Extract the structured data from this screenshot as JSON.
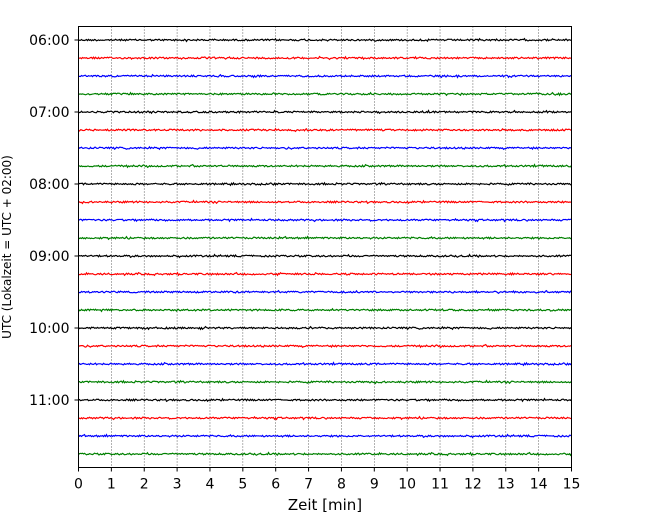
{
  "chart_data": {
    "type": "line",
    "title": "",
    "xlabel": "Zeit  [min]",
    "ylabel": "UTC (Lokalzeit = UTC + 02:00)",
    "xlim": [
      0,
      15
    ],
    "xticks": [
      0,
      1,
      2,
      3,
      4,
      5,
      6,
      7,
      8,
      9,
      10,
      11,
      12,
      13,
      14,
      15
    ],
    "xtick_labels": [
      "0",
      "1",
      "2",
      "3",
      "4",
      "5",
      "6",
      "7",
      "8",
      "9",
      "10",
      "11",
      "12",
      "13",
      "14",
      "15"
    ],
    "ytick_labels": [
      "06:00",
      "07:00",
      "08:00",
      "09:00",
      "10:00",
      "11:00"
    ],
    "trace_interval_min": 15,
    "trace_start": "06:00",
    "trace_count": 24,
    "trace_colors": [
      "#000000",
      "#ff0000",
      "#0000ff",
      "#008000"
    ],
    "grid": "vertical dotted at each minute"
  }
}
